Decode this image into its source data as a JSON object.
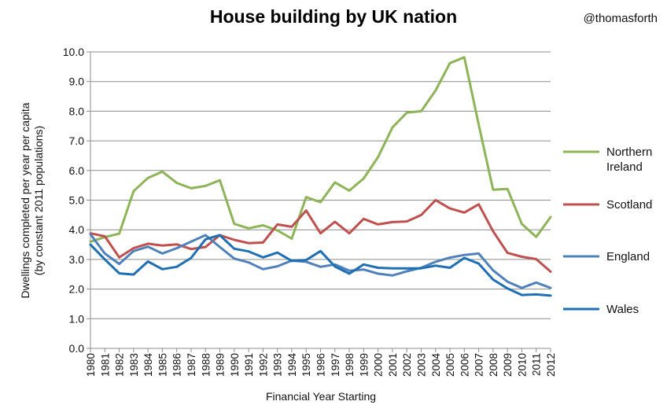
{
  "credit": "@thomasforth",
  "chart_data": {
    "type": "line",
    "title": "House building by UK nation",
    "xlabel": "Financial Year Starting",
    "ylabel_lines": [
      "Dwellings  completed  per year per capita",
      "(by constant  2011  populations)"
    ],
    "ylim": [
      0,
      10
    ],
    "yticks": [
      "0.0",
      "1.0",
      "2.0",
      "3.0",
      "4.0",
      "5.0",
      "6.0",
      "7.0",
      "8.0",
      "9.0",
      "10.0"
    ],
    "grid": true,
    "legend_position": "right",
    "categories": [
      "1980",
      "1981",
      "1982",
      "1983",
      "1984",
      "1985",
      "1986",
      "1987",
      "1988",
      "1989",
      "1990",
      "1991",
      "1992",
      "1993",
      "1994",
      "1995",
      "1996",
      "1997",
      "1998",
      "1999",
      "2000",
      "2001",
      "2002",
      "2003",
      "2004",
      "2005",
      "2006",
      "2007",
      "2008",
      "2009",
      "2010",
      "2011",
      "2012"
    ],
    "series": [
      {
        "name": "Northern Ireland",
        "legend_lines": [
          "Northern",
          "Ireland"
        ],
        "color": "#8db457",
        "values": [
          3.6,
          3.75,
          3.87,
          5.3,
          5.75,
          5.96,
          5.58,
          5.4,
          5.48,
          5.67,
          4.2,
          4.05,
          4.15,
          3.98,
          3.7,
          5.1,
          4.93,
          5.6,
          5.32,
          5.73,
          6.45,
          7.45,
          7.95,
          8.0,
          8.7,
          9.62,
          9.82,
          7.55,
          5.35,
          5.38,
          4.2,
          3.76,
          4.43
        ]
      },
      {
        "name": "Scotland",
        "legend_lines": [
          "Scotland"
        ],
        "color": "#c0504d",
        "values": [
          3.88,
          3.78,
          3.07,
          3.38,
          3.53,
          3.47,
          3.51,
          3.35,
          3.42,
          3.82,
          3.66,
          3.55,
          3.57,
          4.18,
          4.1,
          4.65,
          3.88,
          4.27,
          3.88,
          4.37,
          4.18,
          4.26,
          4.28,
          4.5,
          5.0,
          4.72,
          4.58,
          4.86,
          3.95,
          3.22,
          3.09,
          3.01,
          2.59
        ]
      },
      {
        "name": "England",
        "legend_lines": [
          "England"
        ],
        "color": "#4f81bd",
        "values": [
          3.85,
          3.2,
          2.85,
          3.28,
          3.43,
          3.2,
          3.38,
          3.6,
          3.82,
          3.42,
          3.03,
          2.9,
          2.67,
          2.77,
          2.96,
          2.92,
          2.75,
          2.83,
          2.62,
          2.66,
          2.52,
          2.46,
          2.6,
          2.72,
          2.92,
          3.06,
          3.15,
          3.2,
          2.63,
          2.25,
          2.04,
          2.22,
          2.04
        ]
      },
      {
        "name": "Wales",
        "legend_lines": [
          "Wales"
        ],
        "color": "#1f6fb5",
        "values": [
          3.5,
          3.0,
          2.53,
          2.49,
          2.93,
          2.67,
          2.75,
          3.05,
          3.68,
          3.82,
          3.36,
          3.27,
          3.07,
          3.23,
          2.95,
          2.98,
          3.28,
          2.76,
          2.52,
          2.83,
          2.72,
          2.7,
          2.7,
          2.7,
          2.79,
          2.72,
          3.05,
          2.86,
          2.32,
          2.02,
          1.8,
          1.82,
          1.78
        ]
      }
    ]
  }
}
